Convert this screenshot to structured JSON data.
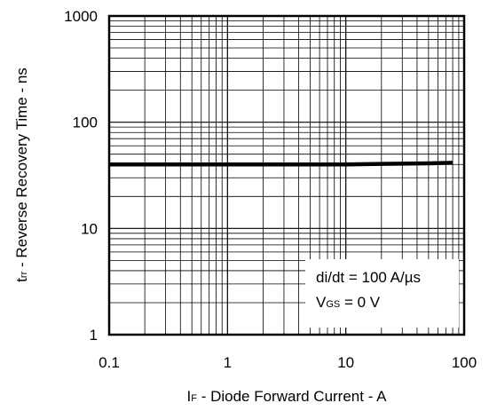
{
  "chart_data": {
    "type": "line",
    "title": "",
    "xscale": "log",
    "yscale": "log",
    "xlim": [
      0.1,
      100
    ],
    "ylim": [
      1,
      1000
    ],
    "grid": true,
    "x_ticks": [
      "0.1",
      "1",
      "10",
      "100"
    ],
    "y_ticks": [
      "1",
      "10",
      "100",
      "1000"
    ],
    "xlabel": {
      "symbol": "I",
      "subscript": "F",
      "text": " - Diode Forward Current - A"
    },
    "ylabel": {
      "symbol": "t",
      "subscript": "rr",
      "text": " - Reverse Recovery Time - ns"
    },
    "annotations": {
      "line1": "di/dt = 100 A/µs",
      "line2_symbol": "V",
      "line2_subscript": "GS",
      "line2_text": " = 0 V"
    },
    "legend_position": "bottom-right",
    "series": [
      {
        "x": [
          0.1,
          0.2,
          0.5,
          1,
          2,
          5,
          10,
          20,
          50,
          80
        ],
        "y": [
          40,
          40,
          40,
          40,
          40,
          40,
          40,
          40.5,
          41,
          41.5
        ]
      }
    ]
  },
  "colors": {
    "line": "#000000",
    "grid": "#000000",
    "background": "#ffffff"
  }
}
